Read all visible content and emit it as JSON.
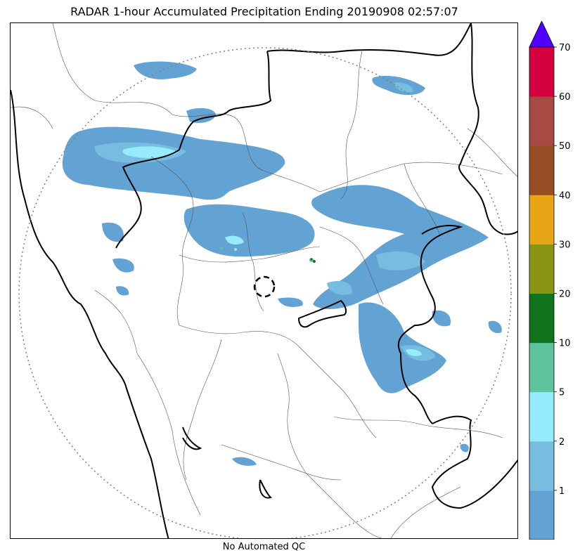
{
  "title": "RADAR 1-hour Accumulated Precipitation Ending 20190908 02:57:07",
  "footer_label": "No Automated QC",
  "colorbar": {
    "tick_labels": [
      "1",
      "2",
      "5",
      "10",
      "20",
      "30",
      "40",
      "50",
      "60",
      "70"
    ],
    "bins": [
      {
        "from": 0,
        "to": 1,
        "color": "#63a3d4"
      },
      {
        "from": 1,
        "to": 2,
        "color": "#76bde0"
      },
      {
        "from": 2,
        "to": 5,
        "color": "#96ecfd"
      },
      {
        "from": 5,
        "to": 10,
        "color": "#5ec39c"
      },
      {
        "from": 10,
        "to": 20,
        "color": "#0f731c"
      },
      {
        "from": 20,
        "to": 30,
        "color": "#8b9414"
      },
      {
        "from": 30,
        "to": 40,
        "color": "#e8a617"
      },
      {
        "from": 40,
        "to": 50,
        "color": "#984c24"
      },
      {
        "from": 50,
        "to": 60,
        "color": "#a64a43"
      },
      {
        "from": 60,
        "to": 70,
        "color": "#d5003f"
      }
    ],
    "extend_color": "#5000ff"
  },
  "map": {
    "range_ring_color": "#808080",
    "radar_site_marker": "dashed-circle",
    "state_border_color": "#000000",
    "district_border_color": "#555555"
  }
}
